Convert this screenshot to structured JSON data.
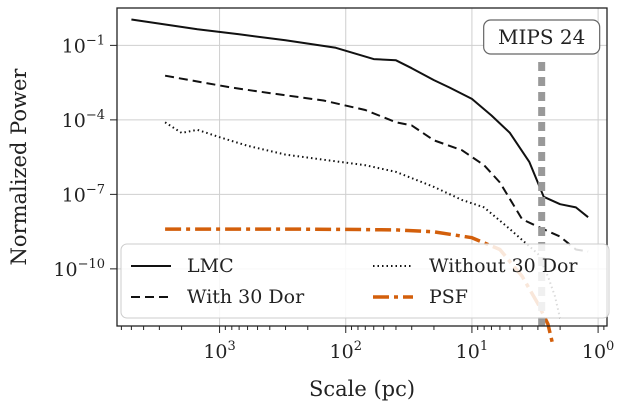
{
  "chart_data": {
    "type": "line",
    "xlabel": "Scale (pc)",
    "ylabel": "Normalized Power",
    "xscale": "log",
    "yscale": "log",
    "xaxis_inverted": true,
    "xlim": [
      6500,
      0.85
    ],
    "ylim": [
      5e-13,
      3.2
    ],
    "grid": true,
    "legend_position": "lower-left",
    "x_ticks": [
      {
        "value": 1000,
        "base": "10",
        "exp": "3"
      },
      {
        "value": 100,
        "base": "10",
        "exp": "2"
      },
      {
        "value": 10,
        "base": "10",
        "exp": "1"
      },
      {
        "value": 1,
        "base": "10",
        "exp": "0"
      }
    ],
    "y_ticks": [
      {
        "value": 0.1,
        "base": "10",
        "exp": "−1"
      },
      {
        "value": 0.0001,
        "base": "10",
        "exp": "−4"
      },
      {
        "value": 1e-07,
        "base": "10",
        "exp": "−7"
      },
      {
        "value": 1e-10,
        "base": "10",
        "exp": "−10"
      }
    ],
    "series": [
      {
        "name": "LMC",
        "style": "solid",
        "color": "#111111",
        "points": [
          [
            5000,
            1.1
          ],
          [
            3000,
            0.75
          ],
          [
            1500,
            0.45
          ],
          [
            700,
            0.28
          ],
          [
            300,
            0.16
          ],
          [
            120,
            0.08
          ],
          [
            60,
            0.028
          ],
          [
            40,
            0.025
          ],
          [
            30,
            0.012
          ],
          [
            20,
            0.004
          ],
          [
            15,
            0.002
          ],
          [
            10,
            0.0007
          ],
          [
            7,
            0.00015
          ],
          [
            5,
            3e-05
          ],
          [
            3.5,
            2e-06
          ],
          [
            2.7,
            8e-08
          ],
          [
            2,
            4e-08
          ],
          [
            1.5,
            3e-08
          ],
          [
            1.2,
            1.2e-08
          ]
        ]
      },
      {
        "name": "With 30 Dor",
        "style": "dashed",
        "color": "#111111",
        "points": [
          [
            2700,
            0.006
          ],
          [
            1500,
            0.0035
          ],
          [
            800,
            0.002
          ],
          [
            400,
            0.0012
          ],
          [
            150,
            0.0006
          ],
          [
            70,
            0.00025
          ],
          [
            40,
            8e-05
          ],
          [
            30,
            6e-05
          ],
          [
            20,
            1.5e-05
          ],
          [
            12,
            6e-06
          ],
          [
            8,
            1.5e-06
          ],
          [
            6,
            3e-07
          ],
          [
            4,
            1e-08
          ],
          [
            3,
            5e-09
          ],
          [
            2,
            2e-09
          ],
          [
            1.5,
            6e-10
          ],
          [
            1.2,
            5e-10
          ]
        ]
      },
      {
        "name": "Without 30 Dor",
        "style": "dotted",
        "color": "#111111",
        "points": [
          [
            2700,
            8e-05
          ],
          [
            2000,
            3e-05
          ],
          [
            1500,
            4e-05
          ],
          [
            1000,
            2e-05
          ],
          [
            600,
            9e-06
          ],
          [
            300,
            4e-06
          ],
          [
            150,
            2.5e-06
          ],
          [
            70,
            1.5e-06
          ],
          [
            40,
            8e-07
          ],
          [
            20,
            2e-07
          ],
          [
            12,
            6e-08
          ],
          [
            8,
            3e-08
          ],
          [
            5,
            4e-09
          ],
          [
            3,
            4e-10
          ],
          [
            2.5,
            5e-11
          ],
          [
            2.2,
            8e-12
          ],
          [
            2.0,
            1e-12
          ]
        ]
      },
      {
        "name": "PSF",
        "style": "dashdot",
        "color": "#d35f0b",
        "points": [
          [
            2700,
            4e-09
          ],
          [
            1000,
            4e-09
          ],
          [
            300,
            4e-09
          ],
          [
            100,
            3.9e-09
          ],
          [
            40,
            3.7e-09
          ],
          [
            20,
            3.1e-09
          ],
          [
            10,
            1.8e-09
          ],
          [
            6,
            6e-10
          ],
          [
            4,
            5e-11
          ],
          [
            3,
            4e-12
          ],
          [
            2.5,
            6e-13
          ],
          [
            2.3,
            1e-13
          ]
        ]
      }
    ],
    "vertical_line": {
      "x": 2.8,
      "color": "#999999",
      "style": "dotted-thick"
    },
    "annotation": {
      "text": "MIPS 24",
      "x": 2.8
    }
  },
  "colors": {
    "grid": "#cfcfcf",
    "axis": "#222222",
    "psf": "#d35f0b",
    "vline": "#999999"
  }
}
